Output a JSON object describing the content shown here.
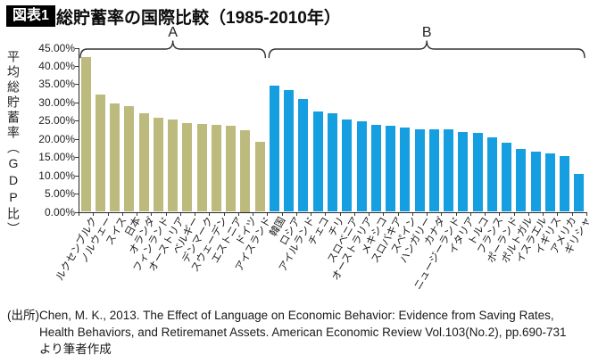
{
  "header": {
    "badge": "図表1",
    "title": "総貯蓄率の国際比較（1985-2010年）"
  },
  "chart_data": {
    "type": "bar",
    "title": "総貯蓄率の国際比較（1985-2010年）",
    "xlabel": "",
    "ylabel": "平均総貯蓄率（GDP比）",
    "ylim": [
      0,
      45
    ],
    "ytick_step": 5,
    "ytick_format": "0.00%",
    "grid": false,
    "legend": "none",
    "groups": [
      {
        "label": "A",
        "color": "#bcba7c",
        "categories": [
          "ルクセンブルク",
          "ノルウェー",
          "スイス",
          "日本",
          "オランダ",
          "フィンランド",
          "オーストリア",
          "ベルギー",
          "デンマーク",
          "スウェーデン",
          "エストニア",
          "ドイツ",
          "アイスランド"
        ],
        "values": [
          42.4,
          32.1,
          29.6,
          29.0,
          27.1,
          25.8,
          25.2,
          24.4,
          24.0,
          23.8,
          23.5,
          22.5,
          19.2
        ]
      },
      {
        "label": "B",
        "color": "#169fe0",
        "categories": [
          "韓国",
          "ロシア",
          "アイルランド",
          "チェコ",
          "チリ",
          "スロベニア",
          "オーストラリア",
          "メキシコ",
          "スロバキア",
          "スペイン",
          "ハンガリー",
          "カナダ",
          "ニュージーランド",
          "イタリア",
          "トルコ",
          "フランス",
          "ポーランド",
          "ポルトガル",
          "イスラエル",
          "イギリス",
          "アメリカ",
          "ギリシャ"
        ],
        "values": [
          34.7,
          33.4,
          30.9,
          27.6,
          27.0,
          25.3,
          24.9,
          23.9,
          23.5,
          23.0,
          22.7,
          22.6,
          22.6,
          21.9,
          21.7,
          20.3,
          18.9,
          17.2,
          16.4,
          15.9,
          15.4,
          10.3
        ]
      }
    ]
  },
  "source": {
    "prefix": "(出所)",
    "text": "Chen, M. K., 2013. The Effect of Language on Economic Behavior: Evidence from Saving Rates, Health Behaviors, and Retiremanet Assets. American Economic Review Vol.103(No.2), pp.690-731 より筆者作成"
  }
}
